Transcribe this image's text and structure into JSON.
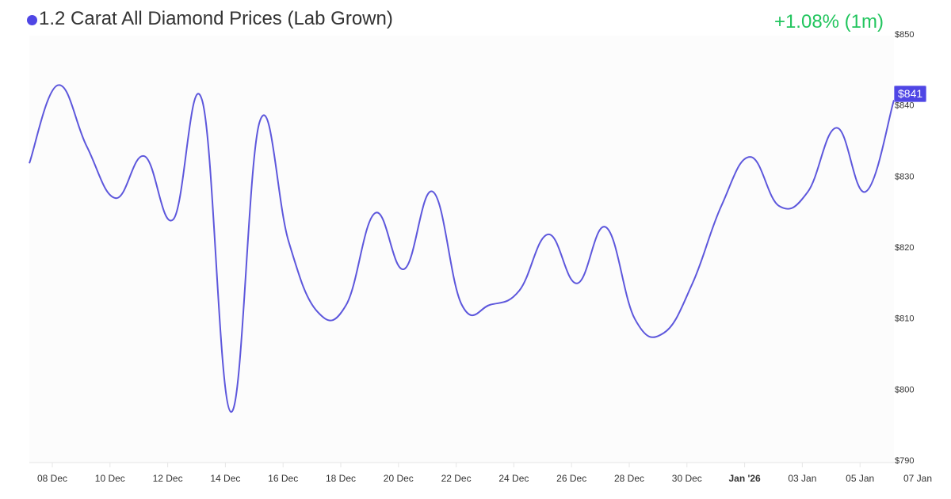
{
  "header": {
    "title": "1.2 Carat All Diamond Prices (Lab Grown)",
    "change_label": "+1.08% (1m)",
    "dot_color": "#4f46e5",
    "change_color": "#22c55e"
  },
  "current_price": {
    "label": "$841",
    "bg_color": "#4f46e5"
  },
  "colors": {
    "line": "#5d57dc",
    "plot_bg": "#fcfcfc",
    "axis_line": "#e6e6e6"
  },
  "chart_data": {
    "type": "line",
    "title": "1.2 Carat All Diamond Prices (Lab Grown)",
    "subtitle": "+1.08% (1m)",
    "xlabel": "",
    "ylabel": "",
    "ylim": [
      790,
      850
    ],
    "y_ticks": [
      "$850",
      "$840",
      "$830",
      "$820",
      "$810",
      "$800",
      "$790"
    ],
    "x_ticks": [
      "08 Dec",
      "10 Dec",
      "12 Dec",
      "14 Dec",
      "16 Dec",
      "18 Dec",
      "20 Dec",
      "22 Dec",
      "24 Dec",
      "26 Dec",
      "28 Dec",
      "30 Dec",
      "Jan '26",
      "03 Jan",
      "05 Jan",
      "07 Jan"
    ],
    "grid": false,
    "legend": "none",
    "current_value_label": "$841",
    "series": [
      {
        "name": "1.2 Carat All Diamond Prices (Lab Grown)",
        "x": [
          "07 Dec",
          "08 Dec",
          "09 Dec",
          "10 Dec",
          "11 Dec",
          "12 Dec",
          "13 Dec",
          "14 Dec",
          "15 Dec",
          "16 Dec",
          "17 Dec",
          "18 Dec",
          "19 Dec",
          "20 Dec",
          "21 Dec",
          "22 Dec",
          "23 Dec",
          "24 Dec",
          "25 Dec",
          "26 Dec",
          "27 Dec",
          "28 Dec",
          "29 Dec",
          "30 Dec",
          "31 Dec",
          "01 Jan",
          "02 Jan",
          "03 Jan",
          "04 Jan",
          "05 Jan",
          "06 Jan"
        ],
        "values": [
          831.8,
          842.8,
          834.2,
          826.9,
          832.8,
          823.9,
          840.7,
          796.8,
          837.7,
          820.8,
          810.9,
          811.9,
          824.8,
          816.9,
          827.8,
          811.9,
          811.9,
          813.9,
          821.8,
          814.9,
          822.8,
          809.9,
          807.9,
          814.9,
          825.8,
          832.7,
          825.8,
          827.8,
          836.8,
          827.8,
          840.7
        ]
      }
    ]
  }
}
